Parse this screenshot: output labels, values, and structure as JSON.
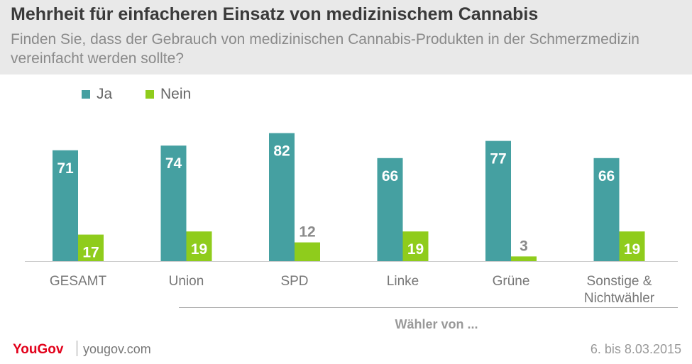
{
  "header": {
    "title": "Mehrheit für einfacheren Einsatz von medizinischem Cannabis",
    "subtitle": "Finden Sie, dass der Gebrauch von medizinischen Cannabis-Produkten in der Schmerzmedizin vereinfacht werden sollte?"
  },
  "legend": {
    "ja": "Ja",
    "nein": "Nein"
  },
  "colors": {
    "ja": "#45a0a1",
    "nein": "#8fcc1c",
    "label_inside": "#ffffff",
    "label_outside": "#8a8a8a",
    "axis_label": "#777777"
  },
  "chart_data": {
    "type": "bar",
    "categories": [
      "GESAMT",
      "Union",
      "SPD",
      "Linke",
      "Grüne",
      "Sonstige & Nichtwähler"
    ],
    "category_lines": [
      [
        "GESAMT"
      ],
      [
        "Union"
      ],
      [
        "SPD"
      ],
      [
        "Linke"
      ],
      [
        "Grüne"
      ],
      [
        "Sonstige &",
        "Nichtwähler"
      ]
    ],
    "series": [
      {
        "name": "Ja",
        "values": [
          71,
          74,
          82,
          66,
          77,
          66
        ]
      },
      {
        "name": "Nein",
        "values": [
          17,
          19,
          12,
          19,
          3,
          19
        ]
      }
    ],
    "ylim": [
      0,
      100
    ],
    "group_label": "Wähler von ...",
    "title": "Mehrheit für einfacheren Einsatz von medizinischem Cannabis",
    "xlabel": "",
    "ylabel": ""
  },
  "footer": {
    "brand": "YouGov",
    "website": "yougov.com",
    "date": "6. bis 8.03.2015"
  }
}
